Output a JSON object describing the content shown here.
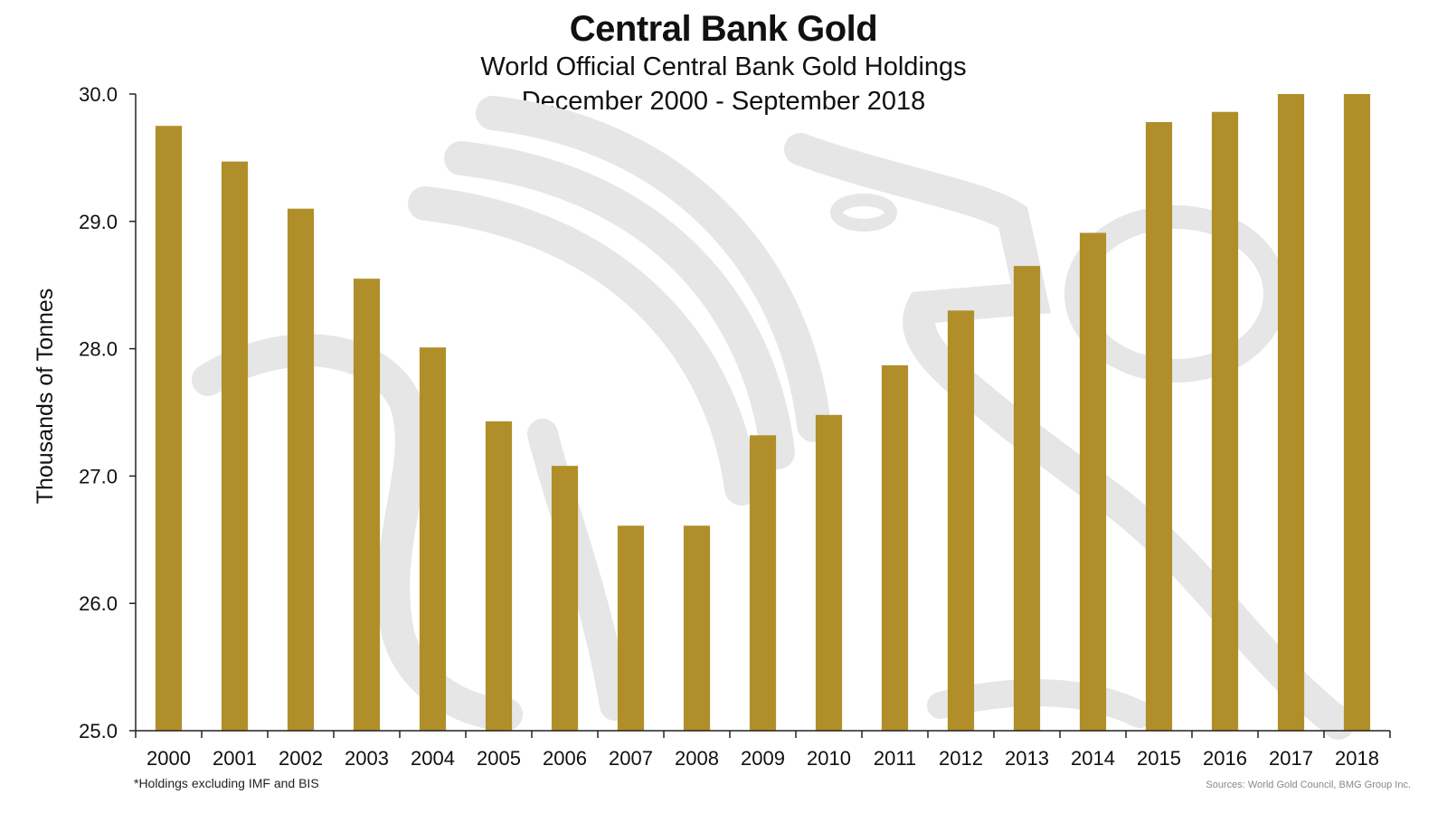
{
  "header": {
    "title": "Central Bank Gold",
    "subtitle": "World Official Central Bank Gold Holdings",
    "date_range": "December 2000 - September 2018"
  },
  "footer": {
    "note": "*Holdings excluding IMF and BIS",
    "sources": "Sources: World Gold Council, BMG Group Inc."
  },
  "colors": {
    "bar": "#b08f2a",
    "watermark": "#e6e6e6",
    "axis": "#222222"
  },
  "chart_data": {
    "type": "bar",
    "title": "Central Bank Gold",
    "subtitle": "World Official Central Bank Gold Holdings December 2000 - September 2018",
    "xlabel": "",
    "ylabel": "Thousands of Tonnes",
    "ylim": [
      25.0,
      30.0
    ],
    "yticks": [
      "25.0",
      "26.0",
      "27.0",
      "28.0",
      "29.0",
      "30.0"
    ],
    "grid": false,
    "categories": [
      "2000",
      "2001",
      "2002",
      "2003",
      "2004",
      "2005",
      "2006",
      "2007",
      "2008",
      "2009",
      "2010",
      "2011",
      "2012",
      "2013",
      "2014",
      "2015",
      "2016",
      "2017",
      "2018"
    ],
    "values": [
      29.75,
      29.47,
      29.1,
      28.55,
      28.01,
      27.43,
      27.08,
      26.61,
      26.61,
      27.32,
      27.48,
      27.87,
      28.3,
      28.65,
      28.91,
      29.78,
      29.86,
      30.0,
      30.0
    ]
  }
}
